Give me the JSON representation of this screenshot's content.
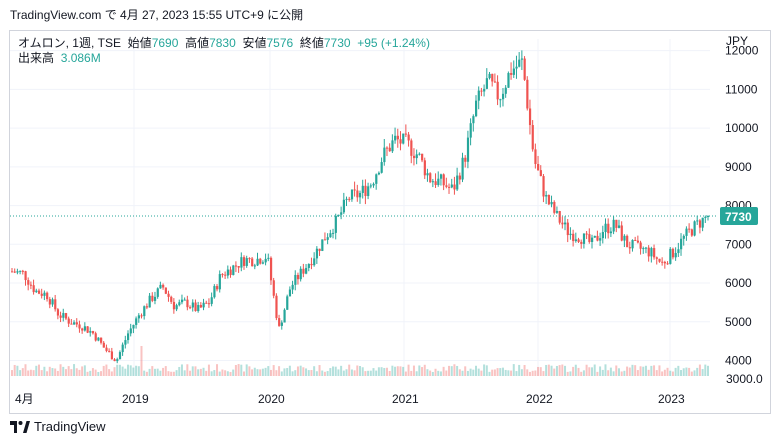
{
  "caption": "TradingView.com で 4月 27, 2023 15:55 UTC+9 に公開",
  "legend": {
    "symbol": "オムロン, 1週, TSE",
    "open_label": "始値",
    "open": "7690",
    "high_label": "高値",
    "high": "7830",
    "low_label": "安値",
    "low": "7576",
    "close_label": "終値",
    "close": "7730",
    "change": "+95 (+1.24%)",
    "volume_label": "出来高",
    "volume": "3.086M"
  },
  "branding": "TradingView",
  "colors": {
    "up": "#26a69a",
    "down": "#ef5350",
    "grid": "#f0f3fa",
    "price_line": "#26a69a"
  },
  "chart_data": {
    "type": "candlestick",
    "currency_label": "JPY",
    "y_ticks": [
      4000,
      5000,
      6000,
      7000,
      8000,
      9000,
      10000,
      11000,
      12000
    ],
    "volume_tick": "3000.0",
    "ylim": [
      3600,
      12300
    ],
    "x_labels": [
      "4月",
      "2019",
      "2020",
      "2021",
      "2022",
      "2023"
    ],
    "last_price": 7730,
    "last_price_label": "7730",
    "price_path": [
      [
        "2018-04",
        6300
      ],
      [
        "2018-05",
        6250
      ],
      [
        "2018-06",
        5800
      ],
      [
        "2018-07",
        5700
      ],
      [
        "2018-08",
        5200
      ],
      [
        "2018-09",
        5000
      ],
      [
        "2018-10",
        4900
      ],
      [
        "2018-11",
        4700
      ],
      [
        "2018-12",
        4300
      ],
      [
        "2019-01",
        4000
      ],
      [
        "2019-02",
        4700
      ],
      [
        "2019-03",
        5200
      ],
      [
        "2019-04",
        5600
      ],
      [
        "2019-05",
        5900
      ],
      [
        "2019-06",
        5400
      ],
      [
        "2019-07",
        5500
      ],
      [
        "2019-08",
        5300
      ],
      [
        "2019-09",
        5500
      ],
      [
        "2019-10",
        6200
      ],
      [
        "2019-11",
        6400
      ],
      [
        "2019-12",
        6600
      ],
      [
        "2020-01",
        6600
      ],
      [
        "2020-02",
        6700
      ],
      [
        "2020-03",
        4800
      ],
      [
        "2020-04",
        5900
      ],
      [
        "2020-05",
        6300
      ],
      [
        "2020-06",
        6700
      ],
      [
        "2020-07",
        7200
      ],
      [
        "2020-08",
        7600
      ],
      [
        "2020-09",
        8200
      ],
      [
        "2020-10",
        8300
      ],
      [
        "2020-11",
        8600
      ],
      [
        "2020-12",
        9300
      ],
      [
        "2021-01",
        9700
      ],
      [
        "2021-02",
        9600
      ],
      [
        "2021-03",
        9300
      ],
      [
        "2021-04",
        8700
      ],
      [
        "2021-05",
        8600
      ],
      [
        "2021-06",
        8400
      ],
      [
        "2021-07",
        9200
      ],
      [
        "2021-08",
        10600
      ],
      [
        "2021-09",
        11200
      ],
      [
        "2021-10",
        10800
      ],
      [
        "2021-11",
        11500
      ],
      [
        "2021-12",
        11700
      ],
      [
        "2022-01",
        9200
      ],
      [
        "2022-02",
        8200
      ],
      [
        "2022-03",
        7700
      ],
      [
        "2022-04",
        7300
      ],
      [
        "2022-05",
        7200
      ],
      [
        "2022-06",
        7000
      ],
      [
        "2022-07",
        7400
      ],
      [
        "2022-08",
        7500
      ],
      [
        "2022-09",
        7000
      ],
      [
        "2022-10",
        6900
      ],
      [
        "2022-11",
        6800
      ],
      [
        "2022-12",
        6500
      ],
      [
        "2023-01",
        6800
      ],
      [
        "2023-02",
        7200
      ],
      [
        "2023-03",
        7500
      ],
      [
        "2023-04",
        7730
      ]
    ]
  }
}
